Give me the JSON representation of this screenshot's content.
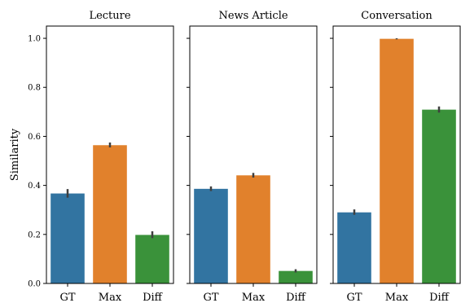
{
  "chart_data": {
    "type": "bar",
    "ylabel": "Similarity",
    "ylim": [
      0,
      1.05
    ],
    "yticks": [
      0.0,
      0.2,
      0.4,
      0.6,
      0.8,
      1.0
    ],
    "ytick_labels": [
      "0.0",
      "0.2",
      "0.4",
      "0.6",
      "0.8",
      "1.0"
    ],
    "categories": [
      "GT",
      "Max",
      "Diff"
    ],
    "category_colors": [
      "#3274a1",
      "#e1812c",
      "#3a923a"
    ],
    "panels": [
      {
        "title": "Lecture",
        "values": [
          0.367,
          0.564,
          0.198
        ],
        "errors": [
          [
            0.35,
            0.385
          ],
          [
            0.555,
            0.575
          ],
          [
            0.185,
            0.213
          ]
        ]
      },
      {
        "title": "News Article",
        "values": [
          0.386,
          0.441,
          0.051
        ],
        "errors": [
          [
            0.377,
            0.396
          ],
          [
            0.432,
            0.451
          ],
          [
            0.045,
            0.058
          ]
        ]
      },
      {
        "title": "Conversation",
        "values": [
          0.29,
          0.998,
          0.709
        ],
        "errors": [
          [
            0.28,
            0.302
          ],
          [
            0.996,
            1.0
          ],
          [
            0.697,
            0.722
          ]
        ]
      }
    ]
  }
}
